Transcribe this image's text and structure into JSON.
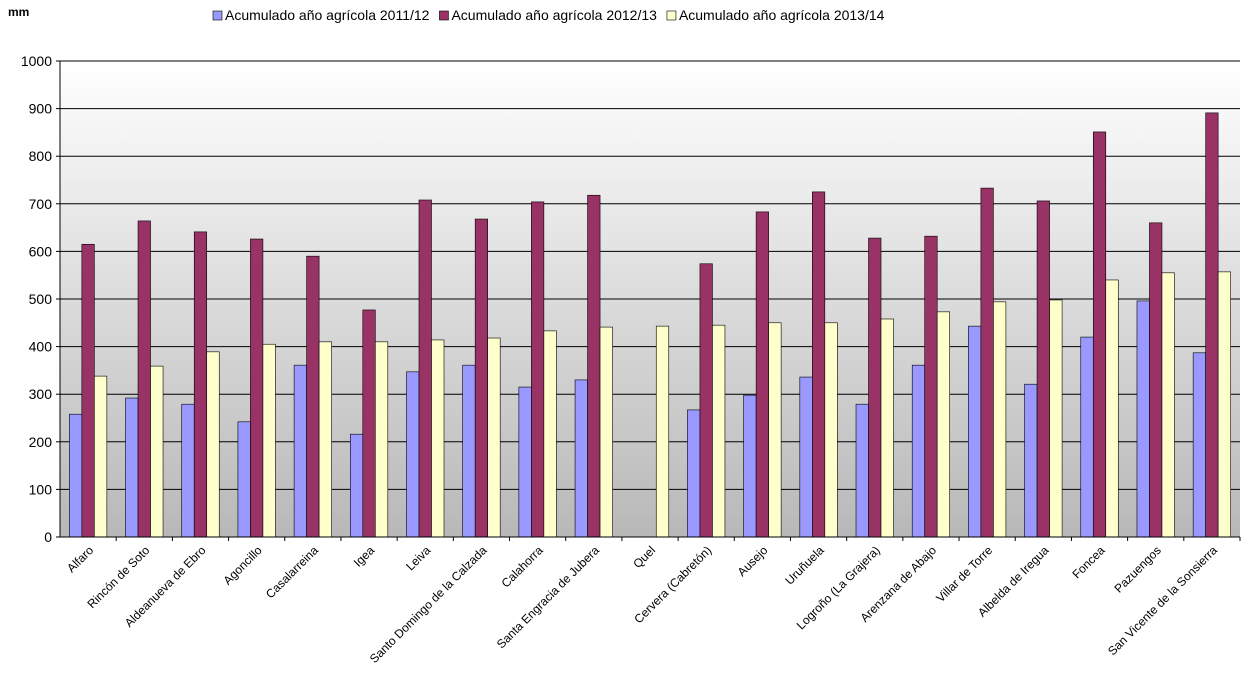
{
  "chart_data": {
    "type": "bar",
    "y_label": "mm",
    "categories": [
      "Alfaro",
      "Rincón de Soto",
      "Aldeanueva de Ebro",
      "Agoncillo",
      "Casalarreina",
      "Igea",
      "Leiva",
      "Santo Domingo de la Calzada",
      "Calahorra",
      "Santa Engracia de Jubera",
      "Quel",
      "Cervera (Cabretón)",
      "Ausejo",
      "Uruñuela",
      "Logroño (La Grajera)",
      "Arenzana de Abajo",
      "Villar de Torre",
      "Albelda de Iregua",
      "Foncea",
      "Pazuengos",
      "San Vicente de la Sonsierra"
    ],
    "series": [
      {
        "name": "Acumulado año agrícola 2011/12",
        "color": "#9999ff",
        "values": [
          258,
          292,
          279,
          242,
          361,
          216,
          347,
          361,
          315,
          330,
          null,
          267,
          298,
          336,
          279,
          361,
          443,
          321,
          420,
          496,
          387
        ]
      },
      {
        "name": "Acumulado año agrícola 2012/13",
        "color": "#993366",
        "values": [
          615,
          664,
          641,
          626,
          590,
          477,
          708,
          668,
          704,
          718,
          null,
          574,
          683,
          725,
          628,
          632,
          733,
          706,
          851,
          660,
          891
        ]
      },
      {
        "name": "Acumulado año agrícola 2013/14",
        "color": "#ffffcc",
        "values": [
          338,
          359,
          389,
          405,
          410,
          410,
          414,
          418,
          433,
          441,
          443,
          445,
          450,
          450,
          458,
          473,
          494,
          498,
          540,
          555,
          557
        ]
      }
    ],
    "ylim": [
      0,
      1000
    ],
    "yticks": [
      0,
      100,
      200,
      300,
      400,
      500,
      600,
      700,
      800,
      900,
      1000
    ],
    "grid": true,
    "legend": "top"
  }
}
